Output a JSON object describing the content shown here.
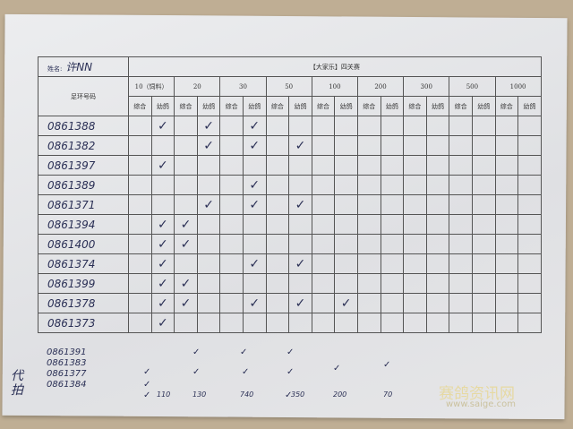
{
  "form": {
    "name_label": "姓名:",
    "name_value": "许NN",
    "title": "【大家乐】四关赛",
    "ring_header": "足环号码",
    "stages": [
      "10（饲料）",
      "20",
      "30",
      "50",
      "100",
      "200",
      "300",
      "500",
      "1000"
    ],
    "sub_headers": [
      "综合",
      "幼鸽"
    ],
    "rows": [
      {
        "ring": "0861388",
        "checks": [
          1,
          3,
          5
        ]
      },
      {
        "ring": "0861382",
        "checks": [
          3,
          5,
          7
        ]
      },
      {
        "ring": "0861397",
        "checks": [
          1
        ]
      },
      {
        "ring": "0861389",
        "checks": [
          5
        ]
      },
      {
        "ring": "0861371",
        "checks": [
          3,
          5,
          7
        ]
      },
      {
        "ring": "0861394",
        "checks": [
          1,
          2
        ]
      },
      {
        "ring": "0861400",
        "checks": [
          1,
          2
        ]
      },
      {
        "ring": "0861374",
        "checks": [
          1,
          5,
          7
        ]
      },
      {
        "ring": "0861399",
        "checks": [
          1,
          2
        ]
      },
      {
        "ring": "0861378",
        "checks": [
          1,
          2,
          5,
          7,
          9
        ]
      },
      {
        "ring": "0861373",
        "checks": [
          1
        ]
      }
    ],
    "check_mark": "✓"
  },
  "handwritten": {
    "side_note": "代拍",
    "extra_rings": [
      "0861391",
      "0861383",
      "0861377",
      "0861384"
    ],
    "amounts": [
      "110",
      "130",
      "740",
      "350",
      "200",
      "70"
    ]
  },
  "watermark": {
    "text": "赛鸽资讯网",
    "url": "www.saige.com"
  }
}
